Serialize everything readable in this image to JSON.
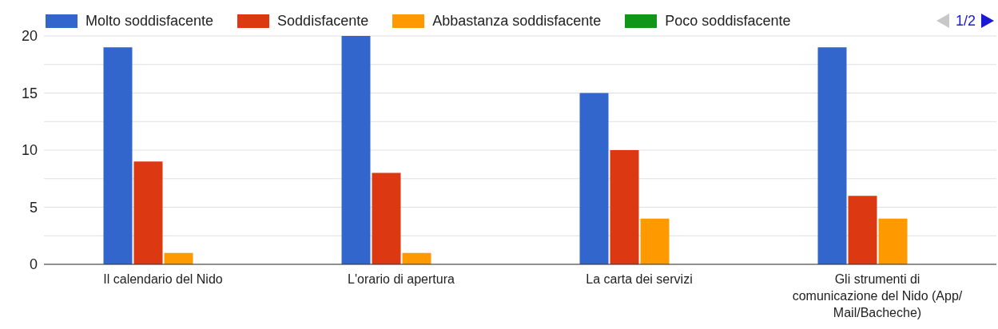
{
  "chart_data": {
    "type": "bar",
    "categories": [
      "Il calendario del Nido",
      "L'orario di apertura",
      "La carta dei servizi",
      "Gli strumenti di comunicazione del Nido (App/Mail/Bacheche)"
    ],
    "series": [
      {
        "name": "Molto soddisfacente",
        "color": "#3366cc",
        "values": [
          19,
          20,
          15,
          19
        ]
      },
      {
        "name": "Soddisfacente",
        "color": "#dc3912",
        "values": [
          9,
          8,
          10,
          6
        ]
      },
      {
        "name": "Abbastanza soddisfacente",
        "color": "#ff9900",
        "values": [
          1,
          1,
          4,
          4
        ]
      },
      {
        "name": "Poco soddisfacente",
        "color": "#109618",
        "values": [
          0,
          0,
          0,
          0
        ]
      }
    ],
    "ylim": [
      0,
      20
    ],
    "yticks": [
      0,
      {
        "value": 2.5,
        "label": null
      },
      5,
      {
        "value": 7.5,
        "label": null
      },
      10,
      {
        "value": 12.5,
        "label": null
      },
      15,
      {
        "value": 17.5,
        "label": null
      },
      20
    ],
    "grid": "y",
    "legend": "top",
    "annotations": [
      "1/2"
    ]
  }
}
